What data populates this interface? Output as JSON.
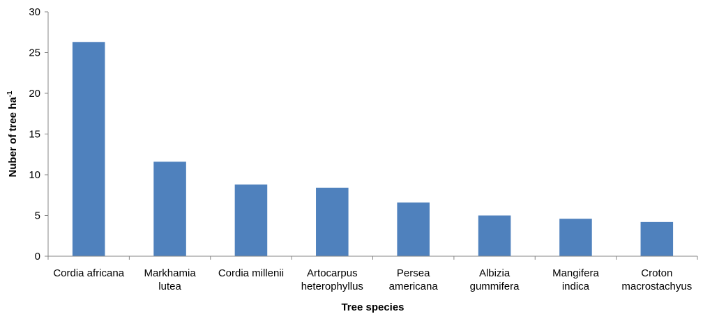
{
  "chart_data": {
    "type": "bar",
    "title": "",
    "xlabel": "Tree species",
    "ylabel": "Nuber of tree ha",
    "ylabel_superscript": "-1",
    "categories": [
      [
        "Cordia africana"
      ],
      [
        "Markhamia",
        "lutea"
      ],
      [
        "Cordia millenii"
      ],
      [
        "Artocarpus",
        "heterophyllus"
      ],
      [
        "Persea",
        "americana"
      ],
      [
        "Albizia",
        "gummifera"
      ],
      [
        "Mangifera",
        "indica"
      ],
      [
        "Croton",
        "macrostachyus"
      ]
    ],
    "values": [
      26.3,
      11.6,
      8.8,
      8.4,
      6.6,
      5.0,
      4.6,
      4.2
    ],
    "ylim": [
      0,
      30
    ],
    "yticks": [
      "0",
      "5",
      "10",
      "15",
      "20",
      "25",
      "30"
    ],
    "grid": false,
    "legend": "none",
    "colors": {
      "bar": "#4f81bd",
      "axis": "#868686"
    }
  }
}
